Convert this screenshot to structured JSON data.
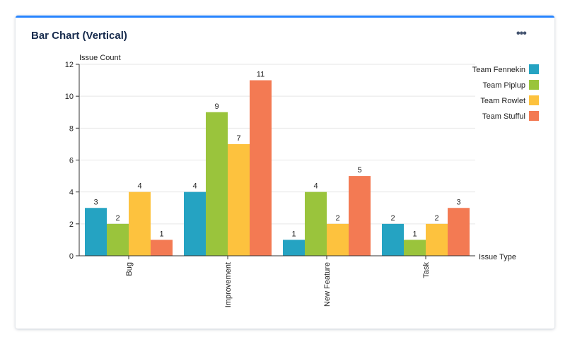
{
  "header": {
    "title": "Bar Chart (Vertical)",
    "more_icon": "more-horizontal-icon"
  },
  "chart_data": {
    "type": "bar",
    "title": "",
    "xlabel": "Issue Type",
    "ylabel": "Issue Count",
    "ylim": [
      0,
      12
    ],
    "yticks": [
      0,
      2,
      4,
      6,
      8,
      10,
      12
    ],
    "grid": true,
    "legend": "right",
    "categories": [
      "Bug",
      "Improvement",
      "New Feature",
      "Task"
    ],
    "series": [
      {
        "name": "Team Fennekin",
        "color": "#25a3c2",
        "values": [
          3,
          4,
          1,
          2
        ]
      },
      {
        "name": "Team Piplup",
        "color": "#9ac43c",
        "values": [
          2,
          9,
          4,
          1
        ]
      },
      {
        "name": "Team Rowlet",
        "color": "#fdc23e",
        "values": [
          4,
          7,
          2,
          2
        ]
      },
      {
        "name": "Team Stufful",
        "color": "#f37a53",
        "values": [
          1,
          11,
          5,
          3
        ]
      }
    ]
  }
}
